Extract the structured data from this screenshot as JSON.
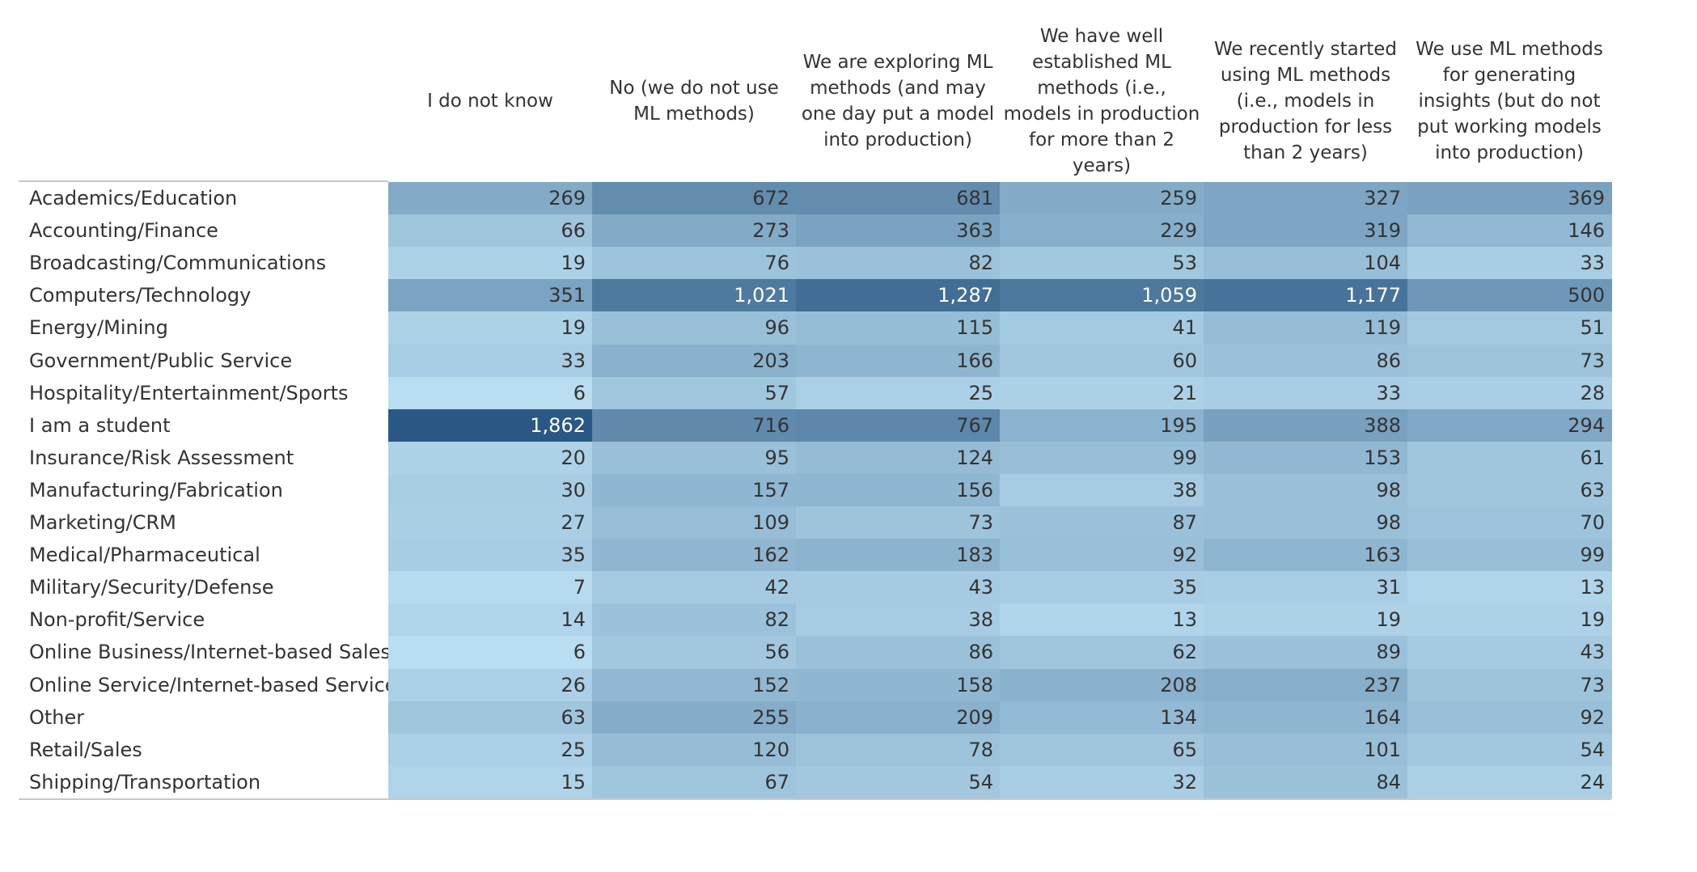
{
  "chart_data": {
    "type": "heatmap",
    "columns": [
      "I do not know",
      "No (we do not use ML methods)",
      "We are exploring ML methods (and may one day put a model into production)",
      "We have well established ML methods (i.e., models in production for more than 2 years)",
      "We recently started using ML methods (i.e., models in production for less than 2 years)",
      "We use ML methods for generating insights (but do not put working models into production)"
    ],
    "rows": [
      "Academics/Education",
      "Accounting/Finance",
      "Broadcasting/Communications",
      "Computers/Technology",
      "Energy/Mining",
      "Government/Public Service",
      "Hospitality/Entertainment/Sports",
      "I am a student",
      "Insurance/Risk Assessment",
      "Manufacturing/Fabrication",
      "Marketing/CRM",
      "Medical/Pharmaceutical",
      "Military/Security/Defense",
      "Non-profit/Service",
      "Online Business/Internet-based Sales",
      "Online Service/Internet-based Services",
      "Other",
      "Retail/Sales",
      "Shipping/Transportation"
    ],
    "values": [
      [
        269,
        672,
        681,
        259,
        327,
        369
      ],
      [
        66,
        273,
        363,
        229,
        319,
        146
      ],
      [
        19,
        76,
        82,
        53,
        104,
        33
      ],
      [
        351,
        1021,
        1287,
        1059,
        1177,
        500
      ],
      [
        19,
        96,
        115,
        41,
        119,
        51
      ],
      [
        33,
        203,
        166,
        60,
        86,
        73
      ],
      [
        6,
        57,
        25,
        21,
        33,
        28
      ],
      [
        1862,
        716,
        767,
        195,
        388,
        294
      ],
      [
        20,
        95,
        124,
        99,
        153,
        61
      ],
      [
        30,
        157,
        156,
        38,
        98,
        63
      ],
      [
        27,
        109,
        73,
        87,
        98,
        70
      ],
      [
        35,
        162,
        183,
        92,
        163,
        99
      ],
      [
        7,
        42,
        43,
        35,
        31,
        13
      ],
      [
        14,
        82,
        38,
        13,
        19,
        19
      ],
      [
        6,
        56,
        86,
        62,
        89,
        43
      ],
      [
        26,
        152,
        158,
        208,
        237,
        73
      ],
      [
        63,
        255,
        209,
        134,
        164,
        92
      ],
      [
        25,
        120,
        78,
        65,
        101,
        54
      ],
      [
        15,
        67,
        54,
        32,
        84,
        24
      ]
    ],
    "value_labels": [
      [
        "269",
        "672",
        "681",
        "259",
        "327",
        "369"
      ],
      [
        "66",
        "273",
        "363",
        "229",
        "319",
        "146"
      ],
      [
        "19",
        "76",
        "82",
        "53",
        "104",
        "33"
      ],
      [
        "351",
        "1,021",
        "1,287",
        "1,059",
        "1,177",
        "500"
      ],
      [
        "19",
        "96",
        "115",
        "41",
        "119",
        "51"
      ],
      [
        "33",
        "203",
        "166",
        "60",
        "86",
        "73"
      ],
      [
        "6",
        "57",
        "25",
        "21",
        "33",
        "28"
      ],
      [
        "1,862",
        "716",
        "767",
        "195",
        "388",
        "294"
      ],
      [
        "20",
        "95",
        "124",
        "99",
        "153",
        "61"
      ],
      [
        "30",
        "157",
        "156",
        "38",
        "98",
        "63"
      ],
      [
        "27",
        "109",
        "73",
        "87",
        "98",
        "70"
      ],
      [
        "35",
        "162",
        "183",
        "92",
        "163",
        "99"
      ],
      [
        "7",
        "42",
        "43",
        "35",
        "31",
        "13"
      ],
      [
        "14",
        "82",
        "38",
        "13",
        "19",
        "19"
      ],
      [
        "6",
        "56",
        "86",
        "62",
        "89",
        "43"
      ],
      [
        "26",
        "152",
        "158",
        "208",
        "237",
        "73"
      ],
      [
        "63",
        "255",
        "209",
        "134",
        "164",
        "92"
      ],
      [
        "25",
        "120",
        "78",
        "65",
        "101",
        "54"
      ],
      [
        "15",
        "67",
        "54",
        "32",
        "84",
        "24"
      ]
    ],
    "color_range": [
      "#b9ddf1",
      "#2a5783"
    ]
  }
}
